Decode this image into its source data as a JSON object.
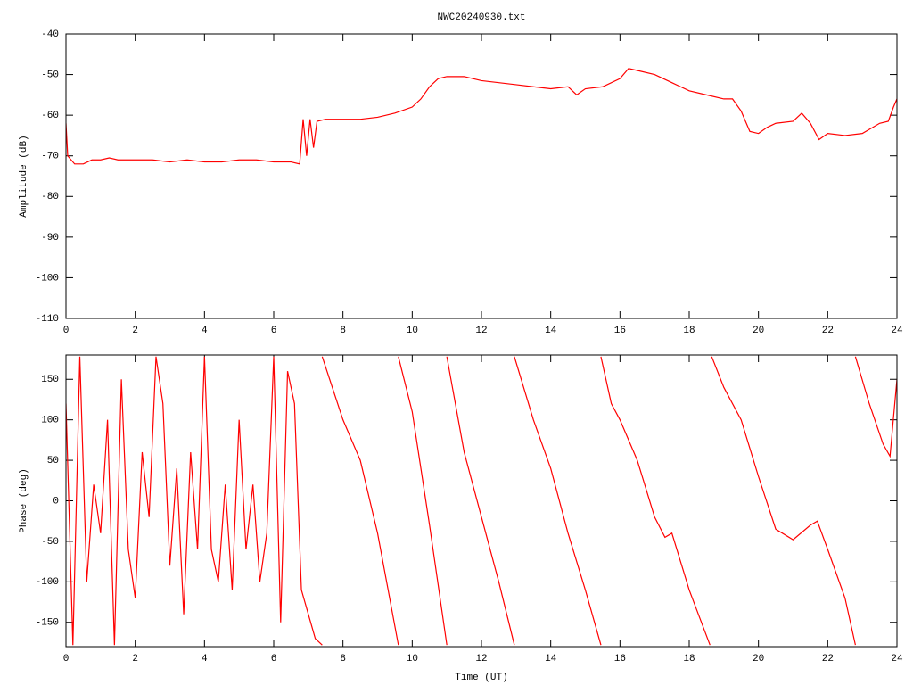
{
  "chart_data": [
    {
      "type": "line",
      "title": "NWC20240930.txt",
      "ylabel": "Amplitude (dB)",
      "color": "#ff0000",
      "x": [
        0,
        0.05,
        0.25,
        0.5,
        0.75,
        1.0,
        1.25,
        1.5,
        1.75,
        2.0,
        2.5,
        3.0,
        3.5,
        4.0,
        4.5,
        5.0,
        5.5,
        6.0,
        6.5,
        6.75,
        6.85,
        6.95,
        7.05,
        7.15,
        7.25,
        7.5,
        8.0,
        8.5,
        9.0,
        9.5,
        10.0,
        10.25,
        10.5,
        10.75,
        11.0,
        11.5,
        12.0,
        12.5,
        13.0,
        13.5,
        14.0,
        14.5,
        14.75,
        15.0,
        15.5,
        16.0,
        16.25,
        16.5,
        17.0,
        17.5,
        18.0,
        18.5,
        19.0,
        19.25,
        19.5,
        19.75,
        20.0,
        20.25,
        20.5,
        21.0,
        21.25,
        21.5,
        21.75,
        22.0,
        22.5,
        23.0,
        23.5,
        23.75,
        23.9,
        24.0
      ],
      "values": [
        -62,
        -70,
        -72,
        -72,
        -71,
        -71,
        -70.5,
        -71,
        -71,
        -71,
        -71,
        -71.5,
        -71,
        -71.5,
        -71.5,
        -71,
        -71,
        -71.5,
        -71.5,
        -72,
        -61,
        -70,
        -61,
        -68,
        -61.5,
        -61,
        -61,
        -61,
        -60.5,
        -59.5,
        -58,
        -56,
        -53,
        -51,
        -50.5,
        -50.5,
        -51.5,
        -52,
        -52.5,
        -53,
        -53.5,
        -53,
        -55,
        -53.5,
        -53,
        -51,
        -48.5,
        -49,
        -50,
        -52,
        -54,
        -55,
        -56,
        -56,
        -59,
        -64,
        -64.5,
        -63,
        -62,
        -61.5,
        -59.5,
        -62,
        -66,
        -64.5,
        -65,
        -64.5,
        -62,
        -61.5,
        -58,
        -56
      ],
      "xlim": [
        0,
        24
      ],
      "xticks": [
        0,
        2,
        4,
        6,
        8,
        10,
        12,
        14,
        16,
        18,
        20,
        22,
        24
      ],
      "ylim": [
        -110,
        -40
      ],
      "yticks": [
        -40,
        -50,
        -60,
        -70,
        -80,
        -90,
        -100,
        -110
      ]
    },
    {
      "type": "line",
      "ylabel": "Phase (deg)",
      "xlabel": "Time (UT)",
      "color": "#ff0000",
      "x": [
        0,
        0.2,
        0.4,
        0.6,
        0.8,
        1.0,
        1.2,
        1.4,
        1.6,
        1.8,
        2.0,
        2.2,
        2.4,
        2.6,
        2.8,
        3.0,
        3.2,
        3.4,
        3.6,
        3.8,
        4.0,
        4.2,
        4.4,
        4.6,
        4.8,
        5.0,
        5.2,
        5.4,
        5.6,
        5.8,
        6.0,
        6.2,
        6.4,
        6.6,
        6.8,
        7.0,
        7.2,
        7.4,
        7.4,
        7.4,
        8.0,
        8.5,
        9.0,
        9.6,
        9.6,
        9.6,
        10.0,
        10.5,
        11.0,
        11.0,
        11.0,
        11.5,
        12.0,
        12.5,
        12.95,
        12.95,
        12.95,
        13.5,
        14.0,
        14.5,
        15.0,
        15.45,
        15.45,
        15.45,
        15.75,
        16.0,
        16.5,
        17.0,
        17.3,
        17.5,
        18.0,
        18.6,
        18.6,
        18.65,
        19.0,
        19.5,
        20.0,
        20.5,
        21.0,
        21.5,
        21.7,
        22.0,
        22.5,
        22.8,
        22.8,
        22.8,
        23.2,
        23.6,
        23.8,
        24.0
      ],
      "values": [
        120,
        -178,
        178,
        -100,
        20,
        -40,
        100,
        -178,
        150,
        -60,
        -120,
        60,
        -20,
        178,
        120,
        -80,
        40,
        -140,
        60,
        -60,
        178,
        -60,
        -100,
        20,
        -110,
        100,
        -60,
        20,
        -100,
        -40,
        178,
        -150,
        160,
        120,
        -110,
        -140,
        -170,
        -178,
        null,
        178,
        100,
        50,
        -40,
        -178,
        null,
        178,
        110,
        -30,
        -178,
        null,
        178,
        60,
        -20,
        -100,
        -178,
        null,
        178,
        100,
        40,
        -40,
        -110,
        -178,
        null,
        178,
        120,
        100,
        50,
        -20,
        -45,
        -40,
        -110,
        -178,
        null,
        178,
        140,
        100,
        30,
        -35,
        -48,
        -30,
        -25,
        -60,
        -120,
        -178,
        null,
        178,
        120,
        70,
        55,
        150
      ],
      "xlim": [
        0,
        24
      ],
      "xticks": [
        0,
        2,
        4,
        6,
        8,
        10,
        12,
        14,
        16,
        18,
        20,
        22,
        24
      ],
      "ylim": [
        -180,
        180
      ],
      "yticks": [
        150,
        100,
        50,
        0,
        -50,
        -100,
        -150
      ]
    }
  ]
}
